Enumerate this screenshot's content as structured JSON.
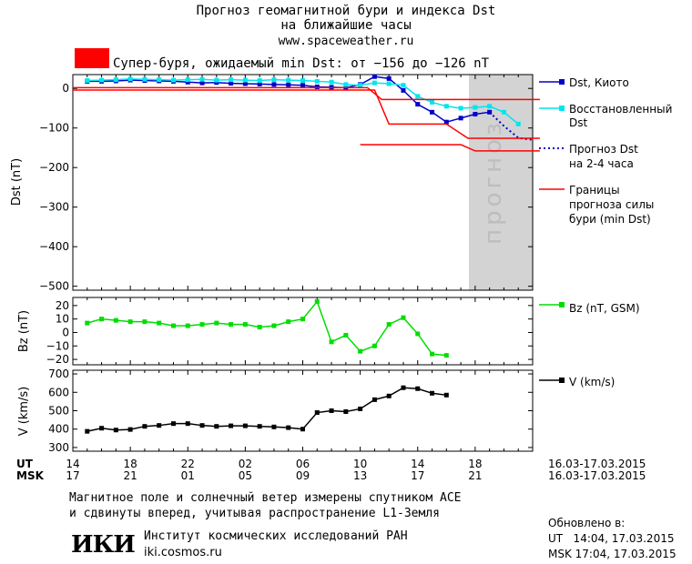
{
  "header": {
    "title_line1": "Прогноз геомагнитной бури и индекса Dst",
    "title_line2": "на ближайшие часы",
    "site": "www.spaceweather.ru",
    "storm_text": "Супер-буря, ожидаемый min Dst: от −156 до −126 nT",
    "storm_color": "#ff0000"
  },
  "chart_data": [
    {
      "type": "line",
      "ylabel": "Dst (nT)",
      "ylim": [
        -510,
        35
      ],
      "yticks": [
        0,
        -100,
        -200,
        -300,
        -400,
        -500
      ],
      "forecast_label": "прогноз",
      "series": [
        {
          "name": "Dst, Киото",
          "color": "#0000cc",
          "x": [
            0,
            1,
            2,
            3,
            4,
            5,
            6,
            7,
            8,
            9,
            10,
            11,
            12,
            13,
            14,
            15,
            16,
            17,
            18,
            19,
            20,
            21,
            22,
            23,
            24,
            25,
            26,
            27,
            28
          ],
          "y": [
            18,
            18,
            19,
            21,
            20,
            19,
            18,
            16,
            14,
            15,
            13,
            12,
            11,
            10,
            9,
            8,
            4,
            3,
            2,
            10,
            30,
            25,
            -5,
            -40,
            -60,
            -85,
            -75,
            -65,
            -60
          ]
        },
        {
          "name": "Восстановленный Dst",
          "color": "#00e5ee",
          "x": [
            0,
            1,
            2,
            3,
            4,
            5,
            6,
            7,
            8,
            9,
            10,
            11,
            12,
            13,
            14,
            15,
            16,
            17,
            18,
            19,
            20,
            21,
            22,
            23,
            24,
            25,
            26,
            27,
            28,
            29,
            30
          ],
          "y": [
            20,
            21,
            22,
            24,
            23,
            22,
            21,
            22,
            23,
            21,
            22,
            21,
            20,
            22,
            21,
            20,
            18,
            16,
            10,
            8,
            14,
            12,
            8,
            -20,
            -35,
            -45,
            -50,
            -48,
            -45,
            -60,
            -90
          ]
        },
        {
          "name": "Прогноз Dst на 2-4 часа",
          "color": "#0000cc",
          "dashed": true,
          "x": [
            28,
            29,
            30,
            31
          ],
          "y": [
            -60,
            -95,
            -125,
            -130
          ]
        },
        {
          "name": "Границы прогноза силы бури (min Dst)",
          "color": "#ff0000",
          "step": true,
          "x": [
            -1,
            20,
            21,
            22,
            31.5
          ],
          "y": [
            0,
            0,
            -30,
            -30,
            -30
          ]
        }
      ]
    },
    {
      "type": "line",
      "ylabel": "Bz (nT)",
      "ylim": [
        -24,
        26
      ],
      "yticks": [
        20,
        10,
        0,
        -10,
        -20
      ],
      "series": [
        {
          "name": "Bz (nT, GSM)",
          "color": "#00dd00",
          "x": [
            0,
            1,
            2,
            3,
            4,
            5,
            6,
            7,
            8,
            9,
            10,
            11,
            12,
            13,
            14,
            15,
            16,
            17,
            18,
            19,
            20,
            21,
            22,
            23,
            24,
            25,
            26,
            27,
            28,
            29
          ],
          "y": [
            7,
            10,
            9,
            8,
            8,
            7,
            5,
            5,
            6,
            7,
            6,
            6,
            4,
            5,
            8,
            10,
            23,
            -7,
            -2,
            -14,
            -10,
            6,
            11,
            -1,
            -16,
            -17,
            0,
            0,
            0,
            0
          ],
          "n": 26
        }
      ]
    },
    {
      "type": "line",
      "ylabel": "V (km/s)",
      "ylim": [
        280,
        720
      ],
      "yticks": [
        700,
        600,
        500,
        400,
        300
      ],
      "series": [
        {
          "name": "V (km/s)",
          "color": "#000000",
          "x": [
            0,
            1,
            2,
            3,
            4,
            5,
            6,
            7,
            8,
            9,
            10,
            11,
            12,
            13,
            14,
            15,
            16,
            17,
            18,
            19,
            20,
            21,
            22,
            23,
            24,
            25
          ],
          "y": [
            388,
            405,
            395,
            398,
            415,
            420,
            430,
            430,
            420,
            415,
            418,
            418,
            415,
            412,
            408,
            400,
            490,
            500,
            495,
            510,
            560,
            580,
            625,
            620,
            595,
            585
          ]
        }
      ]
    }
  ],
  "axis": {
    "ut_label": "UT",
    "msk_label": "MSK",
    "ut_ticks": [
      "14",
      "18",
      "22",
      "02",
      "06",
      "10",
      "14",
      "18"
    ],
    "msk_ticks": [
      "17",
      "21",
      "01",
      "05",
      "09",
      "13",
      "17",
      "21"
    ],
    "date_range_ut": "16.03-17.03.2015",
    "date_range_msk": "16.03-17.03.2015"
  },
  "legend": {
    "dst_kyoto": "Dst, Киото",
    "dst_restored_1": "Восстановленный",
    "dst_restored_2": "Dst",
    "forecast_1": "Прогноз Dst",
    "forecast_2": "на 2-4 часа",
    "bounds_1": "Границы",
    "bounds_2": "прогноза силы",
    "bounds_3": "бури (min Dst)",
    "bz": "Bz (nT, GSM)",
    "v": "V (km/s)"
  },
  "footer": {
    "note_1": "Магнитное поле и солнечный ветер измерены спутником ACE",
    "note_2": "и сдвинуты вперед, учитывая распространение L1-Земля",
    "logo": "ИКИ",
    "institute": "Институт космических исследований РАН",
    "institute_site": "iki.cosmos.ru",
    "updated_label": "Обновлено в:",
    "updated_ut": "UT   14:04, 17.03.2015",
    "updated_msk": "MSK 17:04, 17.03.2015"
  }
}
